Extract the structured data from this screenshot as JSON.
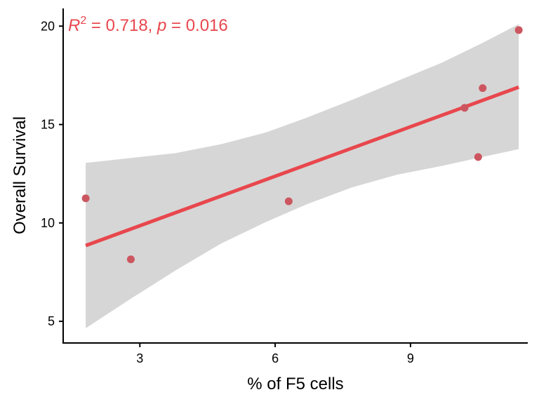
{
  "chart_data": {
    "type": "scatter",
    "xlabel": "% of F5 cells",
    "ylabel": "Overall Survival",
    "xlim": [
      1.3,
      11.6
    ],
    "ylim": [
      3.9,
      20.9
    ],
    "x_ticks": [
      3,
      6,
      9
    ],
    "y_ticks": [
      5,
      10,
      15,
      20
    ],
    "x_tick_labels": [
      "3",
      "6",
      "9"
    ],
    "y_tick_labels": [
      "5",
      "10",
      "15",
      "20"
    ],
    "grid": false,
    "points": [
      {
        "x": 1.8,
        "y": 11.25
      },
      {
        "x": 2.8,
        "y": 8.15
      },
      {
        "x": 6.3,
        "y": 11.1
      },
      {
        "x": 10.2,
        "y": 15.85
      },
      {
        "x": 10.5,
        "y": 13.35
      },
      {
        "x": 10.6,
        "y": 16.85
      },
      {
        "x": 11.4,
        "y": 19.8
      }
    ],
    "fit": {
      "x": [
        1.8,
        11.4
      ],
      "y": [
        8.85,
        16.9
      ]
    },
    "confidence_band": {
      "x": [
        1.8,
        2.8,
        3.8,
        4.8,
        5.8,
        6.7,
        7.7,
        8.7,
        9.7,
        10.6,
        11.4
      ],
      "lower": [
        4.65,
        6.15,
        7.6,
        8.95,
        10.05,
        10.95,
        11.8,
        12.45,
        12.9,
        13.35,
        13.75
      ],
      "upper": [
        13.05,
        13.3,
        13.55,
        14.0,
        14.6,
        15.35,
        16.25,
        17.2,
        18.15,
        19.15,
        20.1
      ]
    },
    "annotation": {
      "r_label": "R",
      "r_sup": "2",
      "stats_text": " = 0.718, ",
      "p_label": "p",
      "p_text": " = 0.016"
    },
    "colors": {
      "fit_line": "#e8474d",
      "points": "#cc5660",
      "band": "#d6d6d6",
      "annotation": "#e8474d"
    }
  }
}
